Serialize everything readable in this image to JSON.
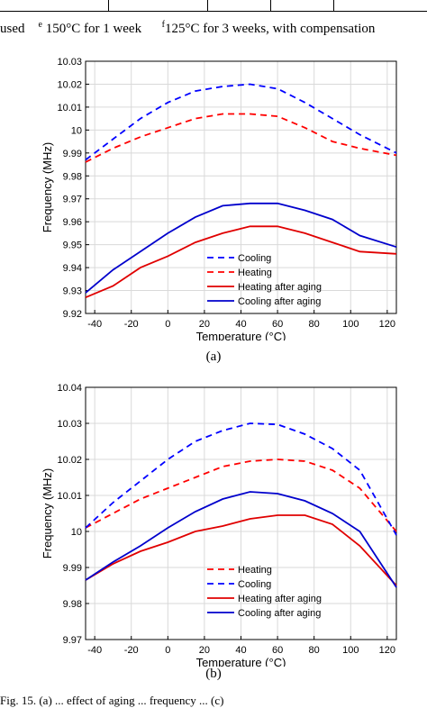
{
  "header_note": {
    "left": "used",
    "e_mark": "e",
    "e_text": "150°C for 1 week",
    "f_mark": "f",
    "f_text": "125°C for 3 weeks, with compensation"
  },
  "captions": [
    "(a)",
    "(b)"
  ],
  "footer_text": "Fig. 15. (a) ... effect of aging ... frequency ... (c)",
  "colors": {
    "blue": "#0000ff",
    "red": "#ff0000",
    "dark_blue": "#0000cc",
    "dark_red": "#e00000"
  },
  "chart_data": [
    {
      "type": "line",
      "title": "",
      "xlabel": "Temperature (°C)",
      "ylabel": "Frequency (MHz)",
      "xlim": [
        -45,
        125
      ],
      "ylim": [
        9.92,
        10.03
      ],
      "xticks": [
        -40,
        -20,
        0,
        20,
        40,
        60,
        80,
        100,
        120
      ],
      "yticks": [
        9.92,
        9.93,
        9.94,
        9.95,
        9.96,
        9.97,
        9.98,
        9.99,
        10,
        10.01,
        10.02,
        10.03
      ],
      "ytick_labels": [
        "9.92",
        "9.93",
        "9.94",
        "9.95",
        "9.96",
        "9.97",
        "9.98",
        "9.99",
        "10",
        "10.01",
        "10.02",
        "10.03"
      ],
      "legend_position": "lower-center",
      "series": [
        {
          "name": "Cooling",
          "style": "dashed",
          "color": "#0000ff",
          "x": [
            -45,
            -30,
            -15,
            0,
            15,
            30,
            45,
            60,
            75,
            90,
            105,
            125
          ],
          "y": [
            9.987,
            9.996,
            10.005,
            10.012,
            10.017,
            10.019,
            10.02,
            10.018,
            10.012,
            10.005,
            9.998,
            9.99
          ]
        },
        {
          "name": "Heating",
          "style": "dashed",
          "color": "#ff0000",
          "x": [
            -45,
            -30,
            -15,
            0,
            15,
            30,
            45,
            60,
            75,
            90,
            105,
            125
          ],
          "y": [
            9.986,
            9.992,
            9.997,
            10.001,
            10.005,
            10.007,
            10.007,
            10.006,
            10.001,
            9.995,
            9.992,
            9.989
          ]
        },
        {
          "name": "Heating after aging",
          "style": "solid",
          "color": "#e00000",
          "x": [
            -45,
            -30,
            -15,
            0,
            15,
            30,
            45,
            60,
            75,
            90,
            105,
            125
          ],
          "y": [
            9.927,
            9.932,
            9.94,
            9.945,
            9.951,
            9.955,
            9.958,
            9.958,
            9.955,
            9.951,
            9.947,
            9.946
          ]
        },
        {
          "name": "Cooling after aging",
          "style": "solid",
          "color": "#0000cc",
          "x": [
            -45,
            -30,
            -15,
            0,
            15,
            30,
            45,
            60,
            75,
            90,
            105,
            125
          ],
          "y": [
            9.929,
            9.939,
            9.947,
            9.955,
            9.962,
            9.967,
            9.968,
            9.968,
            9.965,
            9.961,
            9.954,
            9.949
          ]
        }
      ]
    },
    {
      "type": "line",
      "title": "",
      "xlabel": "Temperature (°C)",
      "ylabel": "Frequency (MHz)",
      "xlim": [
        -45,
        125
      ],
      "ylim": [
        9.97,
        10.04
      ],
      "xticks": [
        -40,
        -20,
        0,
        20,
        40,
        60,
        80,
        100,
        120
      ],
      "yticks": [
        9.97,
        9.98,
        9.99,
        10,
        10.01,
        10.02,
        10.03,
        10.04
      ],
      "ytick_labels": [
        "9.97",
        "9.98",
        "9.99",
        "10",
        "10.01",
        "10.02",
        "10.03",
        "10.04"
      ],
      "legend_position": "lower-center",
      "series": [
        {
          "name": "Heating",
          "style": "dashed",
          "color": "#ff0000",
          "x": [
            -45,
            -30,
            -15,
            0,
            15,
            30,
            45,
            60,
            75,
            90,
            105,
            125
          ],
          "y": [
            10.001,
            10.005,
            10.009,
            10.012,
            10.015,
            10.018,
            10.0195,
            10.02,
            10.0195,
            10.017,
            10.012,
            10.0
          ]
        },
        {
          "name": "Cooling",
          "style": "dashed",
          "color": "#0000ff",
          "x": [
            -45,
            -30,
            -15,
            0,
            15,
            30,
            45,
            60,
            75,
            90,
            105,
            125
          ],
          "y": [
            10.001,
            10.008,
            10.014,
            10.02,
            10.025,
            10.028,
            10.03,
            10.0297,
            10.027,
            10.023,
            10.017,
            9.999
          ]
        },
        {
          "name": "Heating after aging",
          "style": "solid",
          "color": "#e00000",
          "x": [
            -45,
            -30,
            -15,
            0,
            15,
            30,
            45,
            60,
            75,
            90,
            105,
            125
          ],
          "y": [
            9.9865,
            9.991,
            9.9945,
            9.997,
            10.0,
            10.0015,
            10.0035,
            10.0045,
            10.0045,
            10.002,
            9.996,
            9.985
          ]
        },
        {
          "name": "Cooling after aging",
          "style": "solid",
          "color": "#0000cc",
          "x": [
            -45,
            -30,
            -15,
            0,
            15,
            30,
            45,
            60,
            75,
            90,
            105,
            125
          ],
          "y": [
            9.9865,
            9.9915,
            9.996,
            10.001,
            10.0055,
            10.009,
            10.011,
            10.0105,
            10.0085,
            10.005,
            10.0,
            9.9845
          ]
        }
      ]
    }
  ]
}
